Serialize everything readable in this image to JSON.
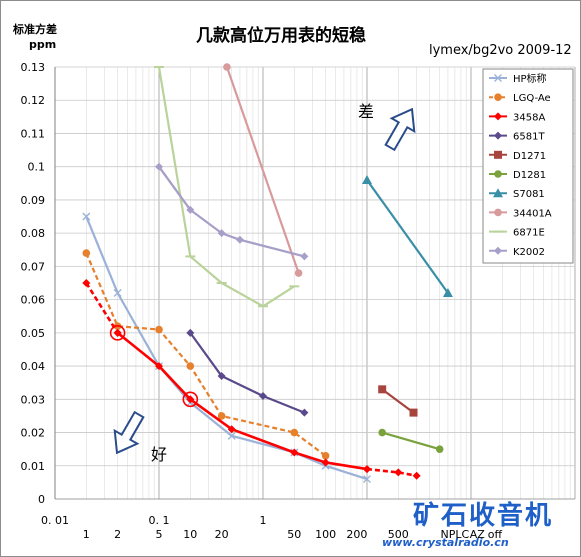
{
  "chart_data": {
    "type": "line",
    "title": "几款高位万用表的短稳",
    "subtitle": "lymex/bg2vo 2009-12",
    "ylabel": "标准方差",
    "yunit": "ppm",
    "xscale": "log",
    "xlim": [
      0.01,
      1000
    ],
    "ylim": [
      0,
      0.13
    ],
    "y_ticks": [
      0,
      0.01,
      0.02,
      0.03,
      0.04,
      0.05,
      0.06,
      0.07,
      0.08,
      0.09,
      0.1,
      0.11,
      0.12,
      0.13
    ],
    "x_ticks_major": [
      "0.01",
      "0.1",
      "1"
    ],
    "x_ticks_minor": [
      {
        "x": 0.02,
        "label": "1"
      },
      {
        "x": 0.04,
        "label": "2"
      },
      {
        "x": 0.1,
        "label": "5"
      },
      {
        "x": 0.2,
        "label": "10"
      },
      {
        "x": 0.4,
        "label": "20"
      },
      {
        "x": 2,
        "label": "50"
      },
      {
        "x": 4,
        "label": "100"
      },
      {
        "x": 8,
        "label": "200"
      },
      {
        "x": 20,
        "label": "500"
      },
      {
        "x": 70,
        "label": "NPLC"
      },
      {
        "x": 115,
        "label": "AZ"
      },
      {
        "x": 170,
        "label": "off"
      }
    ],
    "legend_position": "top-right",
    "grid": true,
    "series": [
      {
        "name": "HP标称",
        "color": "#9ab1d8",
        "style": "solid",
        "marker": "x",
        "x": [
          0.02,
          0.04,
          0.1,
          0.2,
          0.5,
          2,
          4,
          10
        ],
        "y": [
          0.085,
          0.062,
          0.04,
          0.029,
          0.019,
          0.014,
          0.01,
          0.006
        ]
      },
      {
        "name": "LGQ-Ae",
        "color": "#e6802d",
        "style": "dashed",
        "marker": "circle",
        "x": [
          0.02,
          0.04,
          0.1,
          0.2,
          0.4,
          2,
          4
        ],
        "y": [
          0.074,
          0.052,
          0.051,
          0.04,
          0.025,
          0.02,
          0.013
        ]
      },
      {
        "name": "3458A",
        "color": "#ff0000",
        "style": "solid",
        "marker": "diamond",
        "x": [
          0.04,
          0.1,
          0.2,
          0.5,
          2,
          4,
          10
        ],
        "y": [
          0.05,
          0.04,
          0.03,
          0.021,
          0.014,
          0.011,
          0.009
        ]
      },
      {
        "name": "3458A-NPLC",
        "color": "#ff0000",
        "style": "dashed",
        "marker": "diamond",
        "x": [
          0.02,
          0.04
        ],
        "y": [
          0.065,
          0.05
        ]
      },
      {
        "name": "3458A-AZ",
        "color": "#ff0000",
        "style": "dashed",
        "marker": "diamond",
        "x": [
          10,
          20,
          30
        ],
        "y": [
          0.009,
          0.008,
          0.007
        ]
      },
      {
        "name": "6581T",
        "color": "#5b4a8b",
        "style": "solid",
        "marker": "diamond",
        "x": [
          0.2,
          0.4,
          1,
          2.5
        ],
        "y": [
          0.05,
          0.037,
          0.031,
          0.026
        ]
      },
      {
        "name": "D1271",
        "color": "#a8443e",
        "style": "solid",
        "marker": "square",
        "x": [
          14,
          28
        ],
        "y": [
          0.033,
          0.026
        ]
      },
      {
        "name": "D1281",
        "color": "#7aa23c",
        "style": "solid",
        "marker": "circle",
        "x": [
          14,
          50
        ],
        "y": [
          0.02,
          0.015
        ]
      },
      {
        "name": "S7081",
        "color": "#3a8fa8",
        "style": "solid",
        "marker": "triangle",
        "x": [
          10,
          60
        ],
        "y": [
          0.096,
          0.062
        ]
      },
      {
        "name": "34401A",
        "color": "#d89a9a",
        "style": "solid",
        "marker": "circle",
        "x": [
          0.45,
          2.2
        ],
        "y": [
          0.13,
          0.068
        ]
      },
      {
        "name": "6871E",
        "color": "#b9d39a",
        "style": "solid",
        "marker": "dash",
        "x": [
          0.1,
          0.2,
          0.4,
          1,
          2
        ],
        "y": [
          0.13,
          0.073,
          0.065,
          0.058,
          0.064
        ]
      },
      {
        "name": "K2002",
        "color": "#a89fc9",
        "style": "solid",
        "marker": "diamond",
        "x": [
          0.1,
          0.2,
          0.4,
          0.6,
          2.5
        ],
        "y": [
          0.1,
          0.087,
          0.08,
          0.078,
          0.073
        ]
      },
      {
        "name": "K2002-link",
        "color": "#a89fc9",
        "style": "dashed",
        "marker": "none",
        "x": [
          0.1,
          0.2
        ],
        "y": [
          0.1,
          0.087
        ]
      }
    ],
    "legend": [
      "HP标称",
      "LGQ-Ae",
      "3458A",
      "6581T",
      "D1271",
      "D1281",
      "S7081",
      "34401A",
      "6871E",
      "K2002"
    ],
    "highlight_circles": [
      {
        "x": 0.04,
        "y": 0.05
      },
      {
        "x": 0.2,
        "y": 0.03
      }
    ],
    "annotations": [
      {
        "text": "差",
        "color": "#000000"
      },
      {
        "text": "好",
        "color": "#000000"
      }
    ],
    "watermark": {
      "line1": "矿石收音机",
      "line2": "www.crystalradio.cn"
    }
  }
}
